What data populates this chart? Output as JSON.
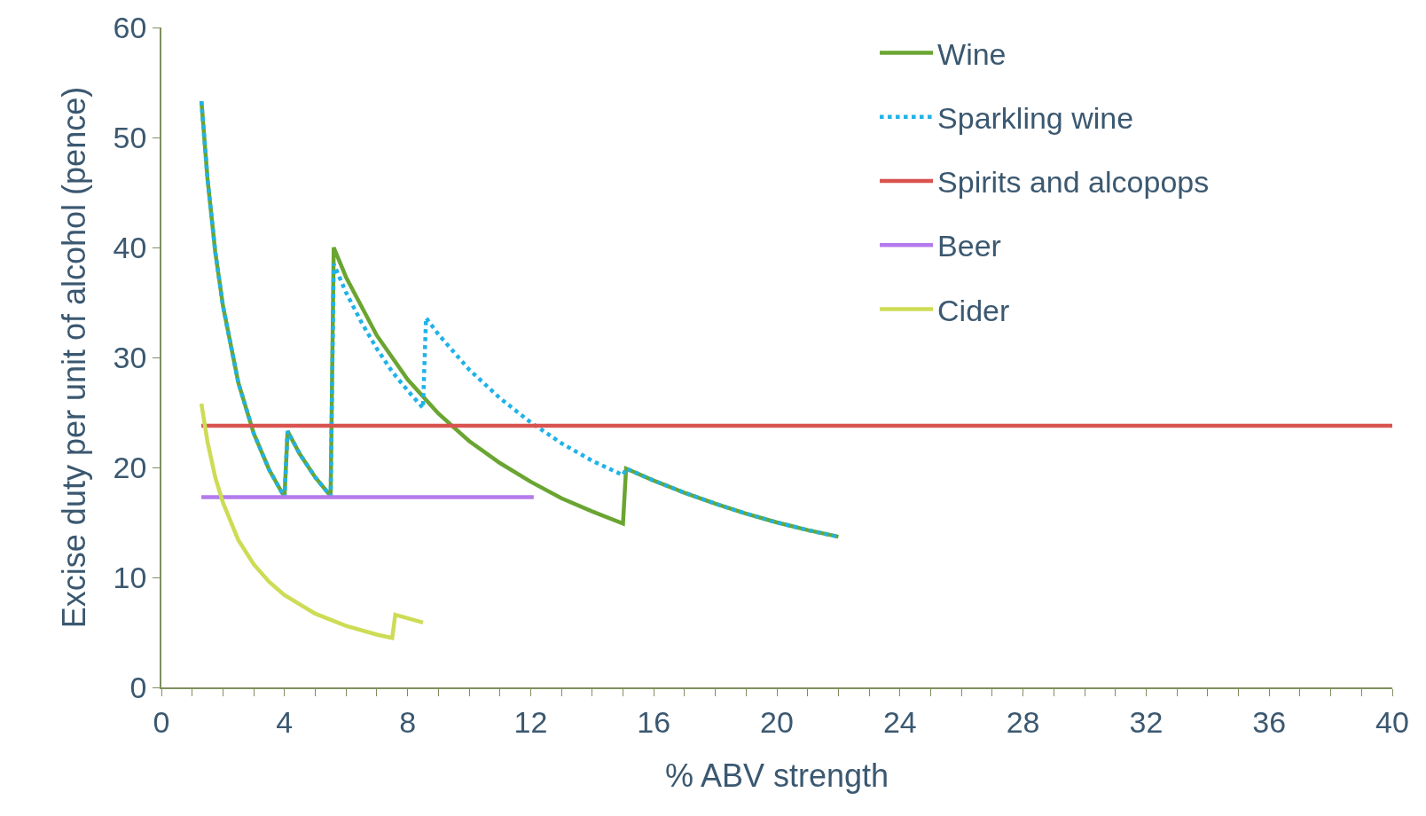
{
  "chart_data": {
    "type": "line",
    "xlabel": "% ABV strength",
    "ylabel": "Excise duty per unit of alcohol (pence)",
    "xlim": [
      0,
      40
    ],
    "ylim": [
      0,
      60
    ],
    "xticks": [
      0,
      {
        "value": 1,
        "label": null
      },
      {
        "value": 2,
        "label": null
      },
      {
        "value": 3,
        "label": null
      },
      4,
      {
        "value": 5,
        "label": null
      },
      {
        "value": 6,
        "label": null
      },
      {
        "value": 7,
        "label": null
      },
      8,
      {
        "value": 9,
        "label": null
      },
      {
        "value": 10,
        "label": null
      },
      {
        "value": 11,
        "label": null
      },
      12,
      {
        "value": 13,
        "label": null
      },
      {
        "value": 14,
        "label": null
      },
      {
        "value": 15,
        "label": null
      },
      16,
      {
        "value": 17,
        "label": null
      },
      {
        "value": 18,
        "label": null
      },
      {
        "value": 19,
        "label": null
      },
      20,
      {
        "value": 21,
        "label": null
      },
      {
        "value": 22,
        "label": null
      },
      {
        "value": 23,
        "label": null
      },
      24,
      {
        "value": 25,
        "label": null
      },
      {
        "value": 26,
        "label": null
      },
      {
        "value": 27,
        "label": null
      },
      28,
      {
        "value": 29,
        "label": null
      },
      {
        "value": 30,
        "label": null
      },
      {
        "value": 31,
        "label": null
      },
      32,
      {
        "value": 33,
        "label": null
      },
      {
        "value": 34,
        "label": null
      },
      {
        "value": 35,
        "label": null
      },
      36,
      {
        "value": 37,
        "label": null
      },
      {
        "value": 38,
        "label": null
      },
      {
        "value": 39,
        "label": null
      },
      40
    ],
    "yticks": [
      0,
      10,
      20,
      30,
      40,
      50,
      60
    ],
    "legend": "top right",
    "marker": "none",
    "series": [
      {
        "name": "Wine",
        "color": "#6aa532",
        "line_style": "solid",
        "x": [
          1.3,
          1.5,
          1.75,
          2,
          2.5,
          3,
          3.5,
          4,
          4.1,
          4.5,
          5,
          5.5,
          5.6,
          6,
          7,
          8,
          9,
          10,
          11,
          12,
          13,
          14,
          15,
          15.1,
          16,
          17,
          18,
          19,
          20,
          21,
          22
        ],
        "values": [
          53.3,
          46.2,
          39.6,
          34.7,
          27.7,
          23.1,
          19.8,
          17.3,
          23.3,
          21.2,
          19.1,
          17.4,
          40.0,
          37.3,
          32.0,
          28.0,
          24.9,
          22.4,
          20.4,
          18.7,
          17.2,
          16.0,
          14.9,
          19.9,
          18.8,
          17.7,
          16.7,
          15.8,
          15.0,
          14.3,
          13.7
        ]
      },
      {
        "name": "Sparkling wine",
        "color": "#1fb3e8",
        "line_style": "dotted",
        "x": [
          1.3,
          1.5,
          1.75,
          2,
          2.5,
          3,
          3.5,
          4,
          4.1,
          4.5,
          5,
          5.5,
          5.6,
          6,
          6.5,
          7,
          7.5,
          8,
          8.5,
          8.6,
          9,
          10,
          11,
          12,
          13,
          14,
          15,
          15.1,
          16,
          17,
          18,
          19,
          20,
          21,
          22
        ],
        "values": [
          53.3,
          46.2,
          39.6,
          34.7,
          27.7,
          23.1,
          19.8,
          17.3,
          23.3,
          21.2,
          19.1,
          17.4,
          38.5,
          35.9,
          33.2,
          30.8,
          28.7,
          27.0,
          25.4,
          33.6,
          32.1,
          28.9,
          26.3,
          24.1,
          22.2,
          20.6,
          19.3,
          19.9,
          18.8,
          17.7,
          16.7,
          15.8,
          15.0,
          14.3,
          13.7
        ]
      },
      {
        "name": "Spirits and alcopops",
        "color": "#d9534f",
        "line_style": "solid",
        "x": [
          1.3,
          40
        ],
        "values": [
          23.8,
          23.8
        ]
      },
      {
        "name": "Beer",
        "color": "#b57aed",
        "line_style": "solid",
        "x": [
          1.3,
          12.1
        ],
        "values": [
          17.3,
          17.3
        ]
      },
      {
        "name": "Cider",
        "color": "#cddc55",
        "line_style": "solid",
        "x": [
          1.3,
          1.5,
          1.75,
          2,
          2.5,
          3,
          3.5,
          4,
          5,
          6,
          7,
          7.5,
          7.6,
          8.5
        ],
        "values": [
          25.8,
          22.3,
          19.1,
          16.8,
          13.4,
          11.2,
          9.6,
          8.4,
          6.7,
          5.6,
          4.8,
          4.5,
          6.6,
          5.9
        ]
      }
    ]
  }
}
